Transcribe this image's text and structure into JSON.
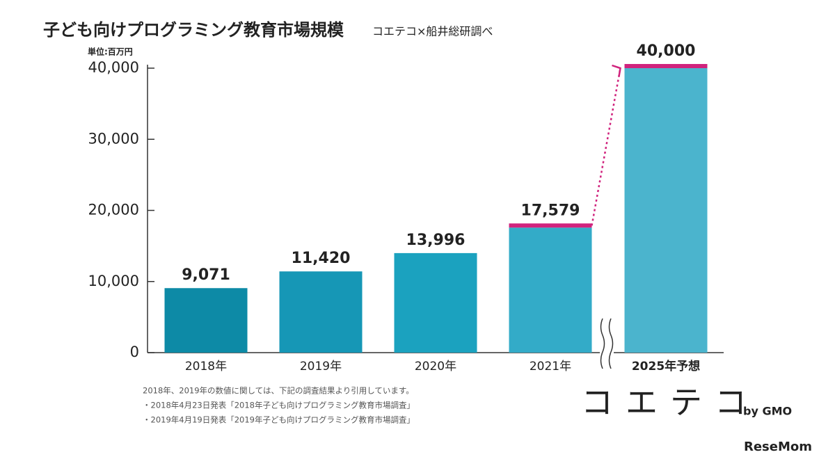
{
  "chart_data": {
    "type": "bar",
    "title": "子ども向けプログラミング教育市場規模",
    "subtitle": "コエテコ×船井総研調べ",
    "unit_label": "単位:百万円",
    "categories": [
      "2018年",
      "2019年",
      "2020年",
      "2021年",
      "2025年予想"
    ],
    "values": [
      9071,
      11420,
      13996,
      17579,
      40000
    ],
    "value_labels": [
      "9,071",
      "11,420",
      "13,996",
      "17,579",
      "40,000"
    ],
    "colors": [
      "#0d8aa6",
      "#1697b6",
      "#1ba2bf",
      "#33abc8",
      "#4bb4cd"
    ],
    "highlight_color": "#d0237d",
    "ylim": [
      0,
      40000
    ],
    "yticks": [
      0,
      {
        "value": 10000,
        "label": "10,000"
      },
      {
        "value": 20000,
        "label": "20,000"
      },
      {
        "value": 30000,
        "label": "30,000"
      },
      {
        "value": 40000,
        "label": "40,000"
      }
    ],
    "notes": [
      "2018年、2019年の数値に関しては、下記の調査結果より引用しています。",
      "・2018年4月23日発表「2018年子ども向けプログラミング教育市場調査」",
      "・2019年4月19日発表「2019年子ども向けプログラミング教育市場調査」"
    ],
    "logo": "コエテコ",
    "logo_sub": "by GMO",
    "watermark": "ReseMom"
  }
}
